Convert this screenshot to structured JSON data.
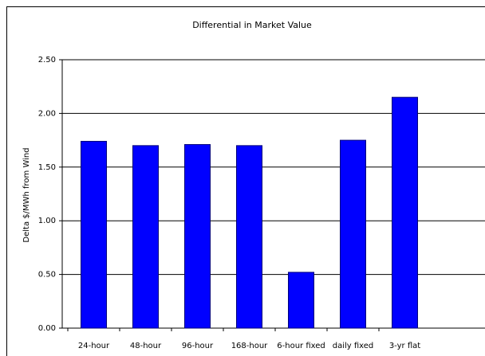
{
  "chart_data": {
    "type": "bar",
    "title": "Differential in Market Value",
    "y_label": "Delta $/MWh from Wind",
    "categories": [
      "24-hour",
      "48-hour",
      "96-hour",
      "168-hour",
      "6-hour fixed",
      "daily fixed",
      "3-yr flat"
    ],
    "values": [
      1.74,
      1.7,
      1.71,
      1.7,
      0.52,
      1.75,
      2.15
    ],
    "color": "#0000ff",
    "ylim": [
      0,
      2.5
    ],
    "yticks": [
      {
        "value": 0,
        "label": "0.00"
      },
      {
        "value": 0.5,
        "label": "0.50"
      },
      {
        "value": 1,
        "label": "1.00"
      },
      {
        "value": 1.5,
        "label": "1.50"
      },
      {
        "value": 2,
        "label": "2.00"
      },
      {
        "value": 2.5,
        "label": "2.50"
      }
    ],
    "grid": true
  }
}
